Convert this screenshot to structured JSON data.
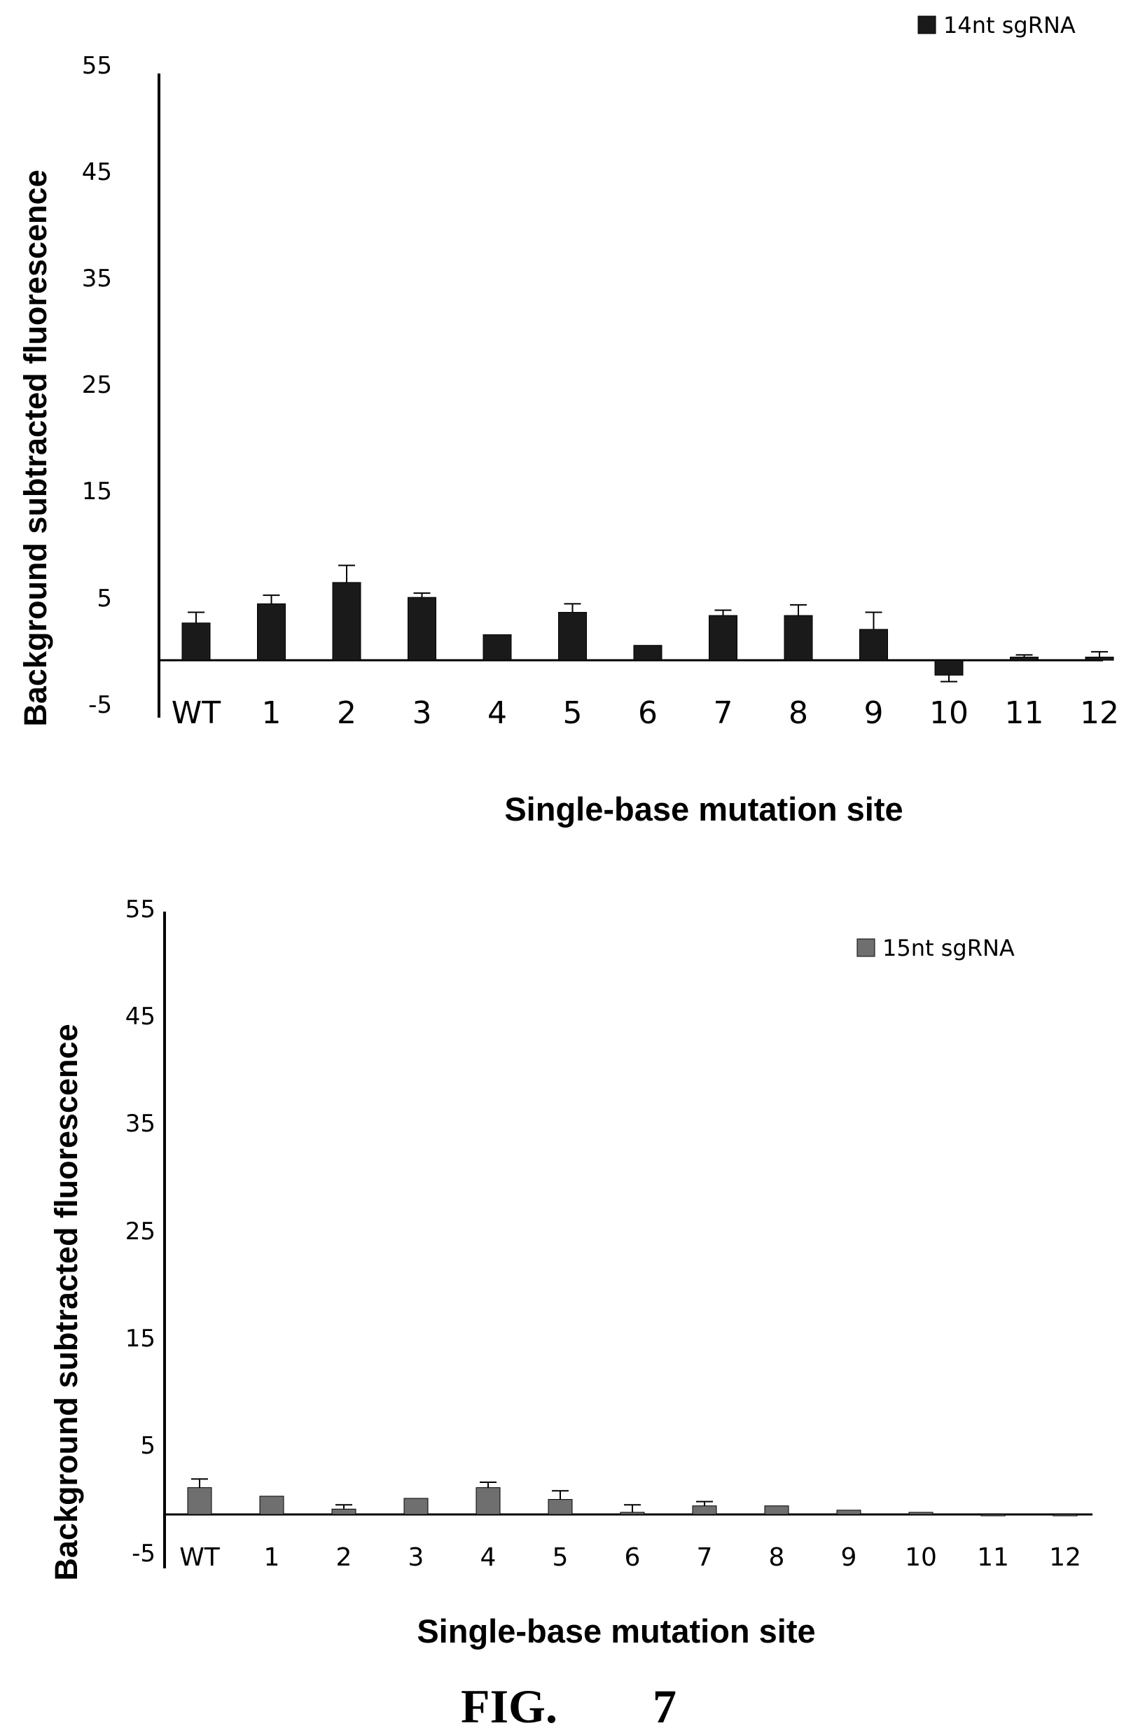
{
  "chart_data": [
    {
      "type": "bar",
      "categories": [
        "WT",
        "1",
        "2",
        "3",
        "4",
        "5",
        "6",
        "7",
        "8",
        "9",
        "10",
        "11",
        "12"
      ],
      "series": [
        {
          "name": "14nt sgRNA",
          "color": "#1a1a1a",
          "values": [
            3.5,
            5.3,
            7.3,
            5.9,
            2.4,
            4.5,
            1.4,
            4.2,
            4.2,
            2.9,
            -1.4,
            0.3,
            0.3
          ],
          "errors": [
            1.0,
            0.8,
            1.6,
            0.4,
            0.0,
            0.8,
            0.0,
            0.5,
            1.0,
            1.6,
            0.6,
            0.2,
            0.5
          ]
        }
      ],
      "xlabel": "Single-base mutation site",
      "ylabel": "Background subtracted fluorescence",
      "yticks": [
        55,
        45,
        35,
        25,
        15,
        5,
        -5
      ],
      "ylim": [
        -5,
        55
      ],
      "legend_position": "top-right",
      "grid": false
    },
    {
      "type": "bar",
      "categories": [
        "WT",
        "1",
        "2",
        "3",
        "4",
        "5",
        "6",
        "7",
        "8",
        "9",
        "10",
        "11",
        "12"
      ],
      "series": [
        {
          "name": "15nt sgRNA",
          "color": "#6f6f6f",
          "values": [
            2.5,
            1.7,
            0.5,
            1.5,
            2.5,
            1.4,
            0.2,
            0.8,
            0.8,
            0.4,
            0.2,
            -0.1,
            0.0
          ],
          "errors": [
            0.8,
            0.0,
            0.4,
            0.0,
            0.5,
            0.8,
            0.7,
            0.4,
            0.0,
            0.0,
            0.0,
            0.0,
            0.0
          ]
        }
      ],
      "xlabel": "Single-base mutation site",
      "ylabel": "Background subtracted fluorescence",
      "yticks": [
        55,
        45,
        35,
        25,
        15,
        5,
        -5
      ],
      "ylim": [
        -5,
        55
      ],
      "legend_position": "top-right",
      "grid": false
    }
  ],
  "caption": "FIG.  7"
}
